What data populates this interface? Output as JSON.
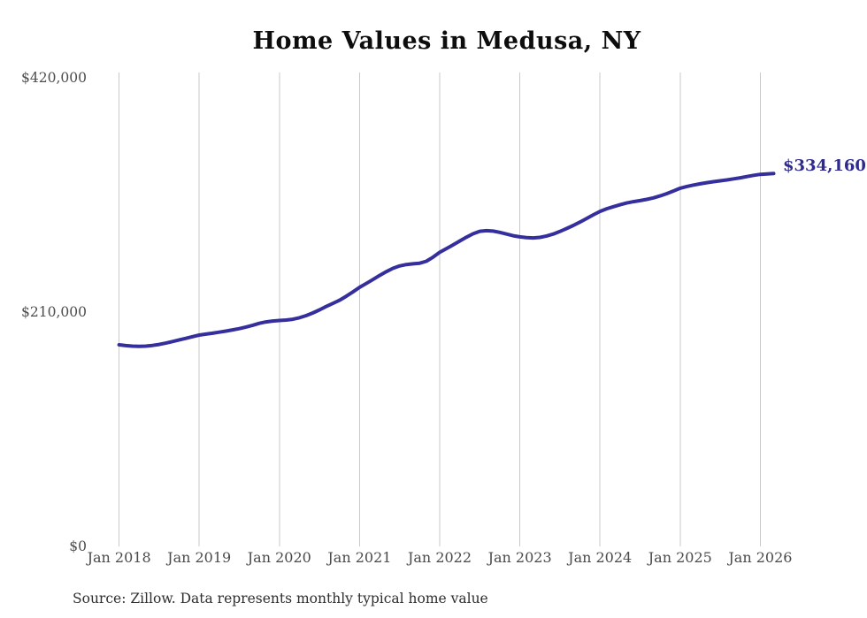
{
  "title": "Home Values in Medusa, NY",
  "end_label": "$334,160",
  "source_note": "Source: Zillow. Data represents monthly typical home value",
  "colors": {
    "line": "#352f9e",
    "end_label": "#2e2a8e",
    "gridline": "#c9c9c9",
    "axis_text": "#4a4a4a",
    "title_text": "#0d0d0d",
    "source_text": "#2e2e2e",
    "background": "#ffffff"
  },
  "chart_data": {
    "type": "line",
    "title": "Home Values in Medusa, NY",
    "xlabel": "",
    "ylabel": "",
    "x_start": "Jan 2018",
    "x_end": "Mar 2026",
    "frequency": "monthly",
    "x_tick_labels": [
      "Jan 2018",
      "Jan 2019",
      "Jan 2020",
      "Jan 2021",
      "Jan 2022",
      "Jan 2023",
      "Jan 2024",
      "Jan 2025",
      "Jan 2026"
    ],
    "y_ticks": [
      {
        "value": 0,
        "label": "$0"
      },
      {
        "value": 210000,
        "label": "$210,000"
      },
      {
        "value": 420000,
        "label": "$420,000"
      }
    ],
    "ylim": [
      0,
      420000
    ],
    "grid": "vertical-only",
    "legend": "none",
    "final_value": 334160,
    "final_value_label": "$334,160",
    "series": [
      {
        "name": "Monthly typical home value",
        "values": [
          180700,
          180000,
          179500,
          179300,
          179500,
          180100,
          181000,
          182200,
          183600,
          185100,
          186500,
          188000,
          189400,
          190300,
          191100,
          192000,
          193000,
          194100,
          195200,
          196600,
          198200,
          199900,
          201200,
          202000,
          202500,
          202900,
          203600,
          204900,
          206800,
          209200,
          212000,
          215000,
          217800,
          220600,
          224200,
          228100,
          232200,
          235600,
          239200,
          242800,
          246200,
          249200,
          251400,
          252600,
          253300,
          253800,
          255600,
          259200,
          263600,
          266800,
          270200,
          273700,
          277100,
          280200,
          282400,
          283000,
          282600,
          281500,
          280000,
          278500,
          277400,
          276800,
          276500,
          277000,
          278200,
          280000,
          282300,
          284900,
          287700,
          290700,
          293900,
          297200,
          300300,
          302600,
          304500,
          306200,
          307800,
          309000,
          309900,
          311000,
          312400,
          314100,
          316200,
          318600,
          321000,
          322600,
          323900,
          325000,
          326000,
          326900,
          327700,
          328500,
          329400,
          330400,
          331500,
          332600,
          333500,
          333900,
          334160
        ]
      }
    ]
  }
}
